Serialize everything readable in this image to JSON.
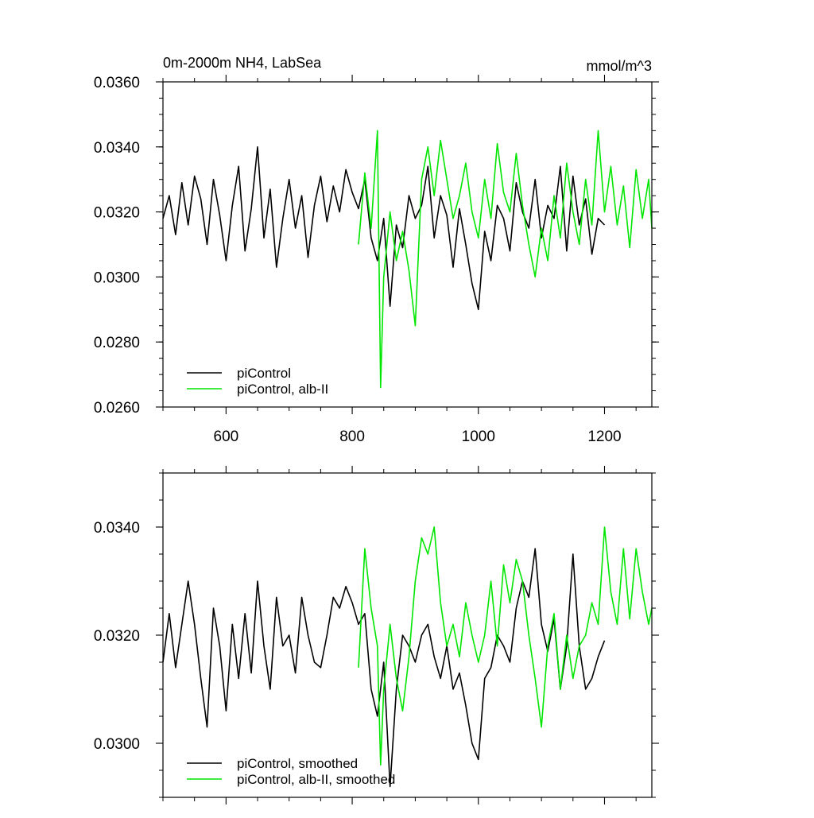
{
  "chart_data": [
    {
      "type": "line",
      "title": "0m-2000m NH4, LabSea",
      "units": "mmol/m^3",
      "xlim": [
        500,
        1275
      ],
      "ylim": [
        0.026,
        0.036
      ],
      "xticks": [
        600,
        800,
        1000,
        1200
      ],
      "xtick_labels": [
        "600",
        "800",
        "1000",
        "1200"
      ],
      "yticks": [
        0.026,
        0.028,
        0.03,
        0.032,
        0.034,
        0.036
      ],
      "ytick_labels": [
        "0.0260",
        "0.0280",
        "0.0300",
        "0.0320",
        "0.0340",
        "0.0360"
      ],
      "legend_position": "bottom-left",
      "series": [
        {
          "name": "piControl",
          "color": "#000000",
          "x": [
            500,
            510,
            520,
            530,
            540,
            550,
            560,
            570,
            580,
            590,
            600,
            610,
            620,
            630,
            640,
            650,
            660,
            670,
            680,
            690,
            700,
            710,
            720,
            730,
            740,
            750,
            760,
            770,
            780,
            790,
            800,
            810,
            820,
            830,
            840,
            850,
            860,
            870,
            880,
            890,
            900,
            910,
            920,
            930,
            940,
            950,
            960,
            970,
            980,
            990,
            1000,
            1010,
            1020,
            1030,
            1040,
            1050,
            1060,
            1070,
            1080,
            1090,
            1100,
            1110,
            1120,
            1130,
            1140,
            1150,
            1160,
            1170,
            1180,
            1190,
            1200
          ],
          "y": [
            0.0318,
            0.0325,
            0.0313,
            0.0329,
            0.0316,
            0.0331,
            0.0324,
            0.031,
            0.033,
            0.0319,
            0.0305,
            0.0322,
            0.0334,
            0.0308,
            0.0321,
            0.034,
            0.0312,
            0.0327,
            0.0303,
            0.0318,
            0.033,
            0.0315,
            0.0325,
            0.0306,
            0.0322,
            0.0331,
            0.0317,
            0.0328,
            0.032,
            0.0333,
            0.0326,
            0.0321,
            0.033,
            0.0312,
            0.0305,
            0.0318,
            0.0291,
            0.0316,
            0.0309,
            0.0325,
            0.0318,
            0.0322,
            0.0334,
            0.0312,
            0.0325,
            0.0319,
            0.0303,
            0.0321,
            0.031,
            0.0298,
            0.029,
            0.0314,
            0.0305,
            0.0322,
            0.0318,
            0.0308,
            0.0329,
            0.032,
            0.0315,
            0.033,
            0.0312,
            0.0322,
            0.0318,
            0.0334,
            0.0308,
            0.0331,
            0.0316,
            0.0324,
            0.0307,
            0.0318,
            0.0316
          ]
        },
        {
          "name": "piControl, alb-II",
          "color": "#00e600",
          "x": [
            810,
            820,
            830,
            840,
            845,
            850,
            860,
            870,
            880,
            890,
            900,
            910,
            920,
            930,
            940,
            950,
            960,
            970,
            980,
            990,
            1000,
            1010,
            1020,
            1030,
            1040,
            1050,
            1060,
            1070,
            1080,
            1090,
            1100,
            1110,
            1120,
            1130,
            1140,
            1150,
            1160,
            1170,
            1180,
            1190,
            1200,
            1210,
            1220,
            1230,
            1240,
            1250,
            1260,
            1270,
            1275
          ],
          "y": [
            0.031,
            0.0332,
            0.0315,
            0.0345,
            0.0266,
            0.03,
            0.032,
            0.0305,
            0.0314,
            0.0302,
            0.0285,
            0.033,
            0.034,
            0.0325,
            0.0342,
            0.033,
            0.0318,
            0.0325,
            0.0335,
            0.032,
            0.0312,
            0.033,
            0.0318,
            0.0341,
            0.0326,
            0.032,
            0.0338,
            0.0322,
            0.031,
            0.03,
            0.0315,
            0.0305,
            0.0325,
            0.0312,
            0.0335,
            0.032,
            0.031,
            0.033,
            0.0316,
            0.0345,
            0.032,
            0.0334,
            0.0316,
            0.0328,
            0.0309,
            0.0333,
            0.0318,
            0.033,
            0.0315
          ]
        }
      ]
    },
    {
      "type": "line",
      "xlim": [
        500,
        1275
      ],
      "ylim": [
        0.029,
        0.035
      ],
      "xticks": [
        600,
        800,
        1000,
        1200
      ],
      "yticks": [
        0.03,
        0.032,
        0.034
      ],
      "ytick_labels": [
        "0.0300",
        "0.0320",
        "0.0340"
      ],
      "legend_position": "bottom-left",
      "series": [
        {
          "name": "piControl, smoothed",
          "color": "#000000",
          "x": [
            500,
            510,
            520,
            530,
            540,
            550,
            560,
            570,
            580,
            590,
            600,
            610,
            620,
            630,
            640,
            650,
            660,
            670,
            680,
            690,
            700,
            710,
            720,
            730,
            740,
            750,
            760,
            770,
            780,
            790,
            800,
            810,
            820,
            830,
            840,
            850,
            860,
            870,
            880,
            890,
            900,
            910,
            920,
            930,
            940,
            950,
            960,
            970,
            980,
            990,
            1000,
            1010,
            1020,
            1030,
            1040,
            1050,
            1060,
            1070,
            1080,
            1090,
            1100,
            1110,
            1120,
            1130,
            1140,
            1150,
            1160,
            1170,
            1180,
            1190,
            1200
          ],
          "y": [
            0.0315,
            0.0324,
            0.0314,
            0.0322,
            0.033,
            0.0322,
            0.0312,
            0.0303,
            0.0325,
            0.0318,
            0.0306,
            0.0322,
            0.0312,
            0.0324,
            0.0313,
            0.033,
            0.0318,
            0.031,
            0.0327,
            0.0318,
            0.032,
            0.0313,
            0.0327,
            0.032,
            0.0315,
            0.0314,
            0.032,
            0.0327,
            0.0325,
            0.0329,
            0.0326,
            0.0322,
            0.0324,
            0.031,
            0.0305,
            0.0315,
            0.0292,
            0.031,
            0.032,
            0.0318,
            0.0315,
            0.032,
            0.0322,
            0.0316,
            0.0312,
            0.0318,
            0.031,
            0.0313,
            0.0307,
            0.03,
            0.0297,
            0.0312,
            0.0314,
            0.032,
            0.0318,
            0.0315,
            0.0325,
            0.033,
            0.0327,
            0.0336,
            0.0322,
            0.0317,
            0.0323,
            0.031,
            0.0318,
            0.0335,
            0.0318,
            0.031,
            0.0312,
            0.0316,
            0.0319
          ]
        },
        {
          "name": "piControl, alb-II, smoothed",
          "color": "#00e600",
          "x": [
            810,
            820,
            830,
            840,
            845,
            850,
            860,
            870,
            880,
            890,
            900,
            910,
            920,
            930,
            940,
            950,
            960,
            970,
            980,
            990,
            1000,
            1010,
            1020,
            1030,
            1040,
            1050,
            1060,
            1070,
            1080,
            1090,
            1100,
            1110,
            1120,
            1130,
            1140,
            1150,
            1160,
            1170,
            1180,
            1190,
            1200,
            1210,
            1220,
            1230,
            1240,
            1250,
            1260,
            1270,
            1275
          ],
          "y": [
            0.0314,
            0.0336,
            0.0325,
            0.0318,
            0.0296,
            0.031,
            0.0322,
            0.0312,
            0.0306,
            0.0316,
            0.033,
            0.0338,
            0.0335,
            0.034,
            0.0326,
            0.0318,
            0.0322,
            0.0316,
            0.0326,
            0.032,
            0.0315,
            0.032,
            0.033,
            0.0318,
            0.0333,
            0.0326,
            0.0334,
            0.033,
            0.032,
            0.0312,
            0.0303,
            0.0318,
            0.0324,
            0.031,
            0.032,
            0.0312,
            0.0318,
            0.032,
            0.0326,
            0.0322,
            0.034,
            0.0328,
            0.0322,
            0.0336,
            0.0323,
            0.0336,
            0.0328,
            0.0322,
            0.0325
          ]
        }
      ]
    }
  ]
}
